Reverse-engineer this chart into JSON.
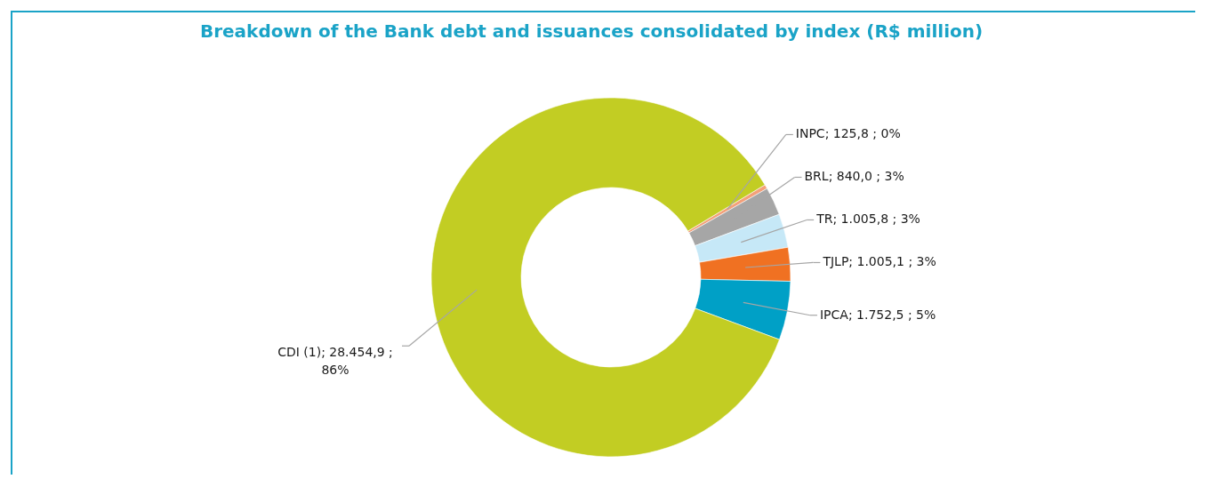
{
  "chart_data": {
    "type": "donut",
    "title": "Breakdown of the Bank debt and issuances consolidated by index (R$ million)",
    "categories": [
      "INPC",
      "BRL",
      "TR",
      "TJLP",
      "IPCA",
      "CDI (1)"
    ],
    "values": [
      125.8,
      840.0,
      1005.8,
      1005.1,
      1752.5,
      28454.9
    ],
    "value_labels": [
      "125,8 ; 0%",
      "840,0 ; 3%",
      "1.005,8 ; 3%",
      "1.005,1 ; 3%",
      "1.752,5 ; 5%",
      "28.454,9 ; 86%"
    ],
    "colors": [
      "#f4a07a",
      "#a6a6a6",
      "#c6e8f7",
      "#f07122",
      "#00a0c6",
      "#c2cd23"
    ]
  }
}
